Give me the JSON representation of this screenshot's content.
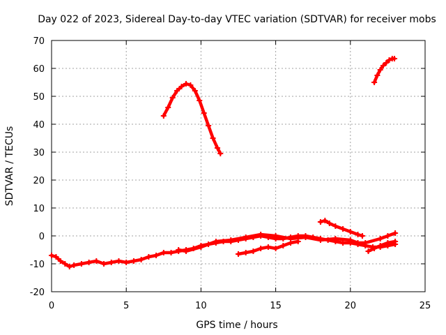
{
  "chart_data": {
    "type": "scatter",
    "title": "Day 022 of 2023, Sidereal Day-to-day VTEC variation (SDTVAR) for receiver mobs",
    "xlabel": "GPS time / hours",
    "ylabel": "SDTVAR / TECUs",
    "xlim": [
      0,
      25
    ],
    "ylim": [
      -20,
      70
    ],
    "xticks": [
      0,
      5,
      10,
      15,
      20,
      25
    ],
    "yticks": [
      -20,
      -10,
      0,
      10,
      20,
      30,
      40,
      50,
      60,
      70
    ],
    "grid": true,
    "series_color": "#ff0000",
    "series": [
      {
        "name": "track-arc-1",
        "points": [
          [
            7.5,
            43
          ],
          [
            7.8,
            46
          ],
          [
            8.1,
            49.5
          ],
          [
            8.4,
            52
          ],
          [
            8.7,
            53.5
          ],
          [
            9.0,
            54.5
          ],
          [
            9.3,
            54
          ],
          [
            9.6,
            52
          ],
          [
            9.9,
            48.5
          ],
          [
            10.2,
            44
          ],
          [
            10.5,
            39.5
          ],
          [
            10.8,
            35
          ],
          [
            11.1,
            31.5
          ],
          [
            11.3,
            29.5
          ]
        ]
      },
      {
        "name": "track-arc-2",
        "points": [
          [
            21.6,
            55
          ],
          [
            21.8,
            57.5
          ],
          [
            22.0,
            59.5
          ],
          [
            22.2,
            61
          ],
          [
            22.4,
            62
          ],
          [
            22.6,
            63
          ],
          [
            22.8,
            63.5
          ],
          [
            22.95,
            63.5
          ]
        ]
      },
      {
        "name": "track-low-main",
        "points": [
          [
            0.0,
            -7
          ],
          [
            0.3,
            -7.5
          ],
          [
            0.6,
            -9
          ],
          [
            0.9,
            -10
          ],
          [
            1.2,
            -11
          ],
          [
            1.5,
            -10.5
          ],
          [
            2.0,
            -10
          ],
          [
            2.5,
            -9.5
          ],
          [
            3.0,
            -9
          ],
          [
            3.5,
            -10
          ],
          [
            4.0,
            -9.5
          ],
          [
            4.5,
            -9
          ],
          [
            5.0,
            -9.5
          ],
          [
            5.5,
            -9
          ],
          [
            6.0,
            -8.5
          ],
          [
            6.5,
            -7.5
          ],
          [
            7.0,
            -7
          ],
          [
            7.5,
            -6
          ],
          [
            8.0,
            -6
          ],
          [
            8.5,
            -5.5
          ],
          [
            9.0,
            -5
          ],
          [
            9.5,
            -4.5
          ],
          [
            10.0,
            -3.5
          ],
          [
            10.5,
            -3
          ],
          [
            11.0,
            -2.5
          ],
          [
            11.5,
            -2
          ],
          [
            12.0,
            -2
          ],
          [
            12.5,
            -1.5
          ],
          [
            13.0,
            -1
          ],
          [
            13.5,
            -0.5
          ],
          [
            14.0,
            0
          ],
          [
            14.5,
            -0.5
          ],
          [
            15.0,
            -1
          ],
          [
            15.5,
            -1
          ],
          [
            16.0,
            -0.5
          ],
          [
            16.5,
            0
          ],
          [
            17.0,
            0
          ],
          [
            17.5,
            -0.5
          ],
          [
            18.0,
            -1
          ],
          [
            18.5,
            -1.5
          ],
          [
            19.0,
            -2
          ],
          [
            19.5,
            -2.5
          ],
          [
            20.0,
            -2.5
          ],
          [
            20.5,
            -3
          ],
          [
            21.0,
            -3.5
          ],
          [
            21.5,
            -4
          ],
          [
            22.0,
            -4
          ],
          [
            22.5,
            -3.5
          ],
          [
            23.0,
            -3
          ]
        ]
      },
      {
        "name": "track-low-upper",
        "points": [
          [
            8.5,
            -5
          ],
          [
            9.0,
            -5.5
          ],
          [
            10.0,
            -4
          ],
          [
            11.0,
            -2
          ],
          [
            12.0,
            -1.5
          ],
          [
            13.0,
            -0.5
          ],
          [
            14.0,
            0.5
          ],
          [
            15.0,
            0
          ],
          [
            16.0,
            -1
          ],
          [
            17.0,
            -0.5
          ],
          [
            18.0,
            -1.5
          ],
          [
            19.0,
            -1
          ],
          [
            20.0,
            -1.5
          ],
          [
            20.5,
            -2.5
          ],
          [
            21.0,
            -2.5
          ],
          [
            22.0,
            -1
          ],
          [
            22.5,
            0
          ],
          [
            23.0,
            1
          ]
        ]
      },
      {
        "name": "track-mid-segment",
        "points": [
          [
            18.0,
            5
          ],
          [
            18.3,
            5.5
          ],
          [
            18.6,
            4.5
          ],
          [
            19.0,
            3.5
          ],
          [
            19.5,
            2.5
          ],
          [
            20.0,
            1.5
          ],
          [
            20.5,
            0.5
          ],
          [
            20.8,
            0
          ]
        ]
      },
      {
        "name": "track-dip-segment",
        "points": [
          [
            12.5,
            -6.5
          ],
          [
            13.0,
            -6
          ],
          [
            13.5,
            -5.5
          ],
          [
            14.0,
            -4.5
          ],
          [
            14.5,
            -4
          ],
          [
            15.0,
            -4.5
          ],
          [
            15.5,
            -3.5
          ],
          [
            16.0,
            -2.5
          ],
          [
            16.5,
            -2
          ]
        ]
      },
      {
        "name": "track-end-lower",
        "points": [
          [
            21.2,
            -5.5
          ],
          [
            21.6,
            -4.5
          ],
          [
            22.0,
            -3.5
          ],
          [
            22.5,
            -2.5
          ],
          [
            23.0,
            -2
          ]
        ]
      }
    ]
  }
}
